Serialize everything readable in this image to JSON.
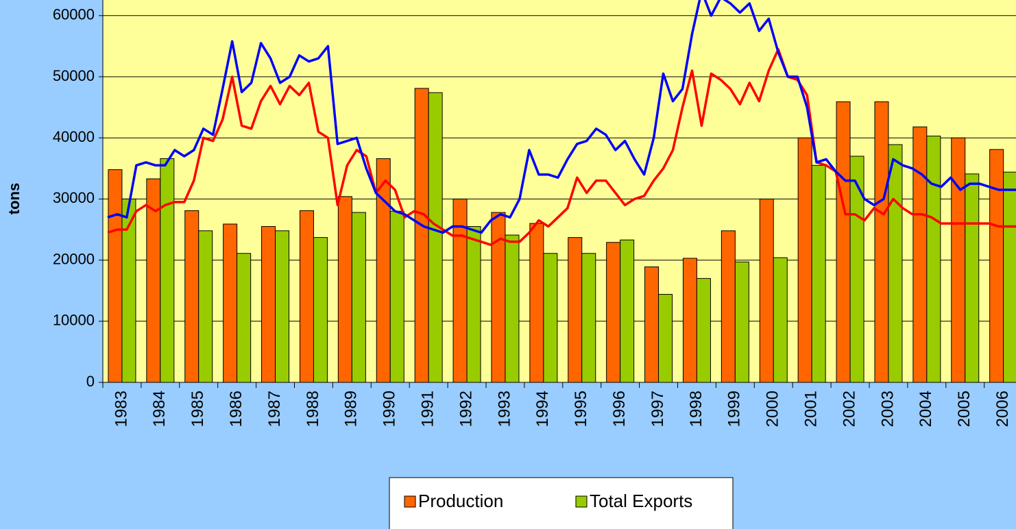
{
  "chart_data": {
    "type": "bar",
    "y_label": "tons",
    "categories": [
      "1983",
      "1984",
      "1985",
      "1986",
      "1987",
      "1988",
      "1989",
      "1990",
      "1991",
      "1992",
      "1993",
      "1994",
      "1995",
      "1996",
      "1997",
      "1998",
      "1999",
      "2000",
      "2001",
      "2002",
      "2003",
      "2004",
      "2005",
      "2006"
    ],
    "series": [
      {
        "name": "Production",
        "color": "#ff6600",
        "values": [
          34800,
          33300,
          28100,
          25900,
          25500,
          28100,
          30400,
          36600,
          48100,
          30000,
          27800,
          26000,
          23700,
          22900,
          18900,
          20300,
          24800,
          30000,
          40000,
          45900,
          45900,
          41800,
          40000,
          38100
        ]
      },
      {
        "name": "Total Exports",
        "color": "#99cc00",
        "values": [
          30000,
          36600,
          24800,
          21100,
          24800,
          23700,
          27800,
          28000,
          47400,
          25500,
          24100,
          21100,
          21100,
          23300,
          14400,
          17000,
          19700,
          20400,
          35500,
          37000,
          38900,
          40300,
          34100,
          34400
        ]
      }
    ],
    "lines": [
      {
        "color": "#ff0000",
        "values": [
          24500,
          25000,
          25000,
          28000,
          29000,
          28000,
          29000,
          29500,
          29500,
          33000,
          40000,
          39500,
          43000,
          50000,
          42000,
          41500,
          46000,
          48500,
          45500,
          48500,
          47000,
          49000,
          41000,
          40000,
          29000,
          35500,
          38000,
          37000,
          31000,
          33000,
          31500,
          27000,
          28000,
          27500,
          26000,
          25000,
          24000,
          24000,
          23500,
          23000,
          22500,
          23500,
          23000,
          23000,
          24500,
          26500,
          25500,
          27000,
          28500,
          33500,
          31000,
          33000,
          33000,
          31000,
          29000,
          30000,
          30500,
          33000,
          35000,
          38000,
          45000,
          51000,
          42000,
          50500,
          49500,
          48000,
          45500,
          49000,
          46000,
          51000,
          54500,
          50000,
          49500,
          47000,
          36000,
          35500,
          34500,
          27500,
          27500,
          26500,
          28500,
          27500,
          30000,
          28500,
          27500,
          27500,
          27000,
          26000,
          26000,
          26000,
          26000,
          26000,
          26000,
          25500,
          25500,
          25500
        ]
      },
      {
        "color": "#0000ff",
        "values": [
          27000,
          27500,
          27000,
          35500,
          36000,
          35500,
          35500,
          38000,
          37000,
          38000,
          41500,
          40500,
          48000,
          55800,
          47500,
          49000,
          55500,
          53000,
          49000,
          50000,
          53500,
          52500,
          53000,
          55000,
          39000,
          39500,
          40000,
          35000,
          31000,
          29500,
          28000,
          27500,
          26500,
          25500,
          25000,
          24500,
          25500,
          25500,
          25000,
          24500,
          26500,
          27500,
          27000,
          30000,
          38000,
          34000,
          34000,
          33500,
          36500,
          39000,
          39500,
          41500,
          40500,
          38000,
          39500,
          36500,
          34000,
          40000,
          50500,
          46000,
          48000,
          57000,
          64000,
          60000,
          63000,
          62000,
          60500,
          62000,
          57500,
          59500,
          54000,
          50000,
          50000,
          45000,
          36000,
          36500,
          34500,
          33000,
          33000,
          30000,
          29000,
          30000,
          36500,
          35500,
          35000,
          34000,
          32500,
          32000,
          33500,
          31500,
          32500,
          32500,
          32000,
          31500,
          31500,
          31500
        ]
      }
    ],
    "x": [
      1983.125,
      1983.375,
      1983.625,
      1983.875,
      1984.125,
      1984.375,
      1984.625,
      1984.875,
      1985.125,
      1985.375,
      1985.625,
      1985.875,
      1986.125,
      1986.375,
      1986.625,
      1986.875,
      1987.125,
      1987.375,
      1987.625,
      1987.875,
      1988.125,
      1988.375,
      1988.625,
      1988.875,
      1989.125,
      1989.375,
      1989.625,
      1989.875,
      1990.125,
      1990.375,
      1990.625,
      1990.875,
      1991.125,
      1991.375,
      1991.625,
      1991.875,
      1992.125,
      1992.375,
      1992.625,
      1992.875,
      1993.125,
      1993.375,
      1993.625,
      1993.875,
      1994.125,
      1994.375,
      1994.625,
      1994.875,
      1995.125,
      1995.375,
      1995.625,
      1995.875,
      1996.125,
      1996.375,
      1996.625,
      1996.875,
      1997.125,
      1997.375,
      1997.625,
      1997.875,
      1998.125,
      1998.375,
      1998.625,
      1998.875,
      1999.125,
      1999.375,
      1999.625,
      1999.875,
      2000.125,
      2000.375,
      2000.625,
      2000.875,
      2001.125,
      2001.375,
      2001.625,
      2001.875,
      2002.125,
      2002.375,
      2002.625,
      2002.875,
      2003.125,
      2003.375,
      2003.625,
      2003.875,
      2004.125,
      2004.375,
      2004.625,
      2004.875,
      2005.125,
      2005.375,
      2005.625,
      2005.875,
      2006.125,
      2006.375,
      2006.625,
      2006.875
    ],
    "xlim": [
      1983,
      2007
    ],
    "ylim": [
      0,
      70000
    ],
    "yticks": [
      0,
      10000,
      20000,
      30000,
      40000,
      50000,
      60000
    ],
    "grid": true,
    "legend": "bottom"
  }
}
